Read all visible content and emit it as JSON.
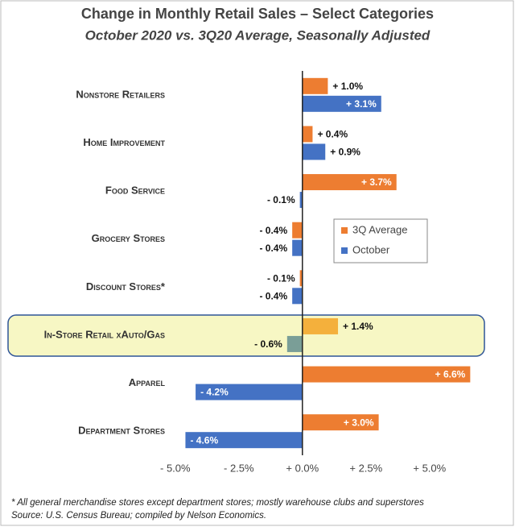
{
  "chart_data": {
    "type": "hbar",
    "title": "Change in Monthly Retail Sales – Select Categories",
    "subtitle": "October 2020 vs. 3Q20 Average, Seasonally Adjusted",
    "categories": [
      "Nonstore Retailers",
      "Home Improvement",
      "Food Service",
      "Grocery Stores",
      "Discount Stores*",
      "In-Store Retail xAuto/Gas",
      "Apparel",
      "Department Stores"
    ],
    "series": [
      {
        "name": "3Q Average",
        "color": "#ed7d31",
        "highlight_color": "#f4b03c",
        "values": [
          1.0,
          0.4,
          3.7,
          -0.4,
          -0.1,
          1.4,
          6.6,
          3.0
        ],
        "value_labels": [
          "+ 1.0%",
          "+ 0.4%",
          "+ 3.7%",
          "- 0.4%",
          "- 0.1%",
          "+ 1.4%",
          "+ 6.6%",
          "+ 3.0%"
        ]
      },
      {
        "name": "October",
        "color": "#4472c4",
        "highlight_color": "#7a9e97",
        "values": [
          3.1,
          0.9,
          -0.1,
          -0.4,
          -0.4,
          -0.6,
          -4.2,
          -4.6
        ],
        "value_labels": [
          "+ 3.1%",
          "+ 0.9%",
          "- 0.1%",
          "- 0.4%",
          "- 0.4%",
          "- 0.6%",
          "- 4.2%",
          "- 4.6%"
        ]
      }
    ],
    "highlight_category": 5,
    "xlim": [
      -5.5,
      7
    ],
    "xticks": [
      {
        "value": -5,
        "label": "- 5.0%"
      },
      {
        "value": -2.5,
        "label": "- 2.5%"
      },
      {
        "value": 0,
        "label": "+ 0.0%"
      },
      {
        "value": 2.5,
        "label": "+ 2.5%"
      },
      {
        "value": 5,
        "label": "+ 5.0%"
      }
    ],
    "legend": "right",
    "footnotes": [
      "* All general merchandise stores except department stores; mostly warehouse clubs and superstores",
      "Source: U.S. Census Bureau; compiled by Nelson Economics."
    ]
  }
}
